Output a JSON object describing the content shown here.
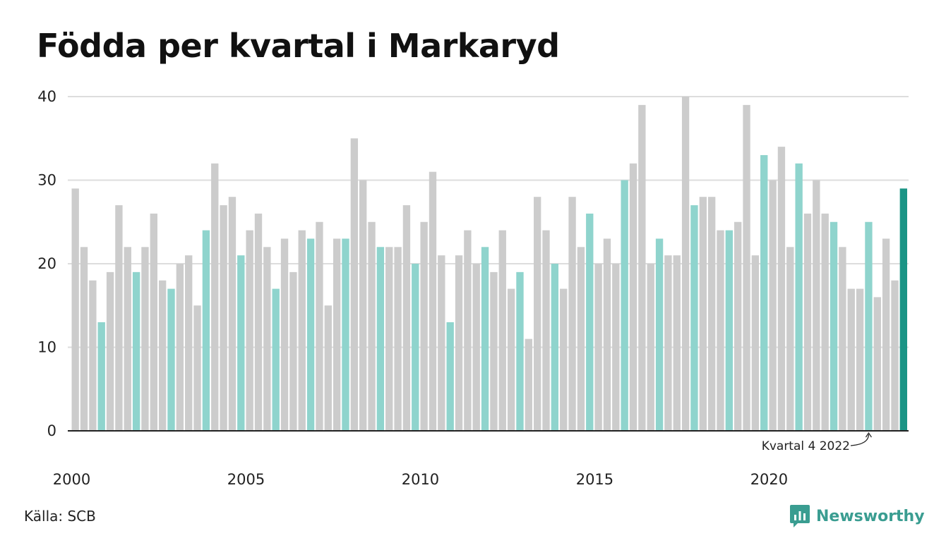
{
  "title": "Födda per kvartal i Markaryd",
  "source": "Källa: SCB",
  "brand": "Newsworthy",
  "colors": {
    "bar": "#cccccc",
    "q4_bar": "#8fd4cd",
    "latest_bar": "#1a9485",
    "grid": "#dddddd",
    "axis": "#222222",
    "brand": "#3a9d91"
  },
  "chart_data": {
    "type": "bar",
    "title": "Födda per kvartal i Markaryd",
    "xlabel": "",
    "ylabel": "",
    "ylim": [
      0,
      40
    ],
    "y_ticks": [
      0,
      10,
      20,
      30,
      40
    ],
    "x_ticks": [
      "2000",
      "2005",
      "2010",
      "2015",
      "2020"
    ],
    "grid": true,
    "start_year": 2000,
    "start_quarter": 1,
    "values": [
      29,
      22,
      18,
      13,
      19,
      27,
      22,
      19,
      22,
      26,
      18,
      17,
      20,
      21,
      15,
      24,
      32,
      27,
      28,
      21,
      24,
      26,
      22,
      17,
      23,
      19,
      24,
      23,
      25,
      15,
      23,
      23,
      35,
      30,
      25,
      22,
      22,
      22,
      27,
      20,
      25,
      31,
      21,
      13,
      21,
      24,
      20,
      22,
      19,
      24,
      17,
      19,
      11,
      28,
      24,
      20,
      17,
      28,
      22,
      26,
      20,
      23,
      20,
      30,
      32,
      39,
      20,
      23,
      21,
      21,
      40,
      27,
      28,
      28,
      24,
      24,
      25,
      39,
      21,
      33,
      30,
      34,
      22,
      32,
      26,
      30,
      26,
      25,
      22,
      17,
      17,
      25,
      16,
      23,
      18,
      29
    ],
    "annotation": {
      "text": "Kvartal 4 2022",
      "index": 91
    }
  }
}
